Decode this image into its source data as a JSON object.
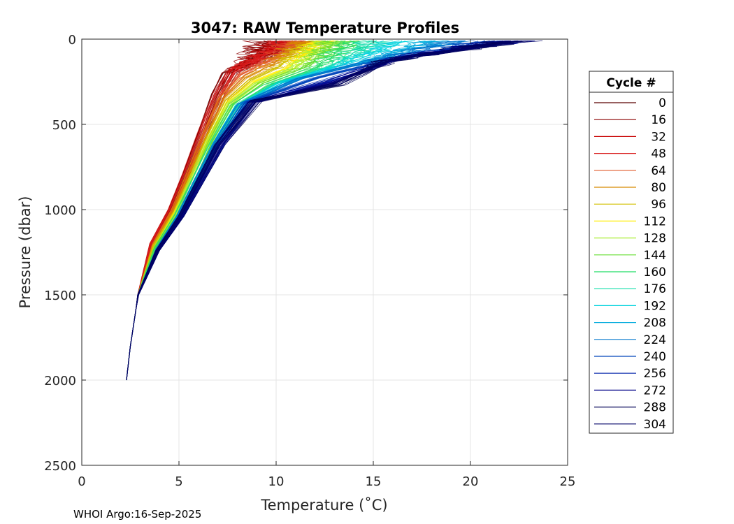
{
  "chart_data": {
    "type": "line",
    "title": "3047: RAW Temperature Profiles",
    "xlabel": "Temperature (˚C)",
    "ylabel": "Pressure (dbar)",
    "xlim": [
      0,
      25
    ],
    "ylim": [
      0,
      2500
    ],
    "y_reversed": true,
    "grid": true,
    "x_ticks": [
      0,
      5,
      10,
      15,
      20,
      25
    ],
    "y_ticks": [
      0,
      500,
      1000,
      1500,
      2000,
      2500
    ],
    "legend": {
      "title": "Cycle #",
      "placement": "outside-right",
      "entries": [
        {
          "label": "0",
          "color": "#5a0000"
        },
        {
          "label": "16",
          "color": "#8c0000"
        },
        {
          "label": "32",
          "color": "#c80000"
        },
        {
          "label": "48",
          "color": "#d92020"
        },
        {
          "label": "64",
          "color": "#e05a2a"
        },
        {
          "label": "80",
          "color": "#d88a00"
        },
        {
          "label": "96",
          "color": "#d2c000"
        },
        {
          "label": "112",
          "color": "#ffee00"
        },
        {
          "label": "128",
          "color": "#aaee33"
        },
        {
          "label": "144",
          "color": "#66dd33"
        },
        {
          "label": "160",
          "color": "#22dd66"
        },
        {
          "label": "176",
          "color": "#11ddaa"
        },
        {
          "label": "192",
          "color": "#00d2dd"
        },
        {
          "label": "208",
          "color": "#00aadd"
        },
        {
          "label": "224",
          "color": "#0077cc"
        },
        {
          "label": "240",
          "color": "#0044bb"
        },
        {
          "label": "256",
          "color": "#0022aa"
        },
        {
          "label": "272",
          "color": "#000088"
        },
        {
          "label": "288",
          "color": "#000055"
        },
        {
          "label": "304",
          "color": "#000066"
        }
      ]
    },
    "series": [
      {
        "name": "0",
        "color": "#5a0000",
        "points": [
          [
            11.2,
            10
          ],
          [
            8.6,
            150
          ],
          [
            7.6,
            200
          ],
          [
            7.0,
            320
          ],
          [
            6.2,
            560
          ],
          [
            5.4,
            790
          ],
          [
            4.6,
            1000
          ],
          [
            3.6,
            1200
          ],
          [
            2.9,
            1500
          ],
          [
            2.5,
            1800
          ],
          [
            2.3,
            2000
          ]
        ]
      },
      {
        "name": "16",
        "color": "#8c0000",
        "points": [
          [
            9.6,
            10
          ],
          [
            8.4,
            140
          ],
          [
            7.5,
            200
          ],
          [
            7.0,
            320
          ],
          [
            6.2,
            560
          ],
          [
            5.4,
            790
          ],
          [
            4.6,
            1000
          ],
          [
            3.6,
            1200
          ],
          [
            2.9,
            1500
          ],
          [
            2.5,
            1800
          ],
          [
            2.3,
            2000
          ]
        ]
      },
      {
        "name": "32",
        "color": "#c80000",
        "points": [
          [
            10.6,
            10
          ],
          [
            8.9,
            120
          ],
          [
            7.8,
            190
          ],
          [
            7.1,
            320
          ],
          [
            6.2,
            560
          ],
          [
            5.4,
            790
          ],
          [
            4.6,
            1000
          ],
          [
            3.6,
            1200
          ],
          [
            2.9,
            1500
          ],
          [
            2.5,
            1800
          ],
          [
            2.3,
            2000
          ]
        ]
      },
      {
        "name": "48",
        "color": "#d92020",
        "points": [
          [
            10.8,
            10
          ],
          [
            9.2,
            110
          ],
          [
            7.9,
            180
          ],
          [
            7.1,
            320
          ],
          [
            6.2,
            560
          ],
          [
            5.4,
            790
          ],
          [
            4.6,
            1000
          ],
          [
            3.6,
            1200
          ],
          [
            2.9,
            1500
          ],
          [
            2.5,
            1800
          ],
          [
            2.3,
            2000
          ]
        ]
      },
      {
        "name": "64",
        "color": "#e05a2a",
        "points": [
          [
            11.3,
            10
          ],
          [
            9.6,
            130
          ],
          [
            8.2,
            210
          ],
          [
            7.2,
            330
          ],
          [
            6.3,
            560
          ],
          [
            5.5,
            800
          ],
          [
            4.7,
            1000
          ],
          [
            3.7,
            1200
          ],
          [
            2.9,
            1500
          ],
          [
            2.5,
            1800
          ],
          [
            2.3,
            2000
          ]
        ]
      },
      {
        "name": "80",
        "color": "#d88a00",
        "points": [
          [
            11.6,
            10
          ],
          [
            9.8,
            150
          ],
          [
            8.4,
            230
          ],
          [
            7.3,
            350
          ],
          [
            6.4,
            570
          ],
          [
            5.5,
            800
          ],
          [
            4.7,
            1010
          ],
          [
            3.7,
            1210
          ],
          [
            2.9,
            1500
          ],
          [
            2.5,
            1800
          ],
          [
            2.3,
            2000
          ]
        ]
      },
      {
        "name": "96",
        "color": "#d2c000",
        "points": [
          [
            12.0,
            10
          ],
          [
            10.2,
            160
          ],
          [
            8.7,
            240
          ],
          [
            7.5,
            360
          ],
          [
            6.5,
            580
          ],
          [
            5.6,
            810
          ],
          [
            4.8,
            1010
          ],
          [
            3.7,
            1210
          ],
          [
            2.9,
            1500
          ],
          [
            2.5,
            1800
          ],
          [
            2.3,
            2000
          ]
        ]
      },
      {
        "name": "112",
        "color": "#ffee00",
        "points": [
          [
            12.3,
            10
          ],
          [
            10.6,
            170
          ],
          [
            8.9,
            250
          ],
          [
            7.6,
            370
          ],
          [
            6.6,
            590
          ],
          [
            5.7,
            820
          ],
          [
            4.8,
            1020
          ],
          [
            3.8,
            1220
          ],
          [
            2.9,
            1500
          ],
          [
            2.5,
            1800
          ],
          [
            2.3,
            2000
          ]
        ]
      },
      {
        "name": "128",
        "color": "#aaee33",
        "points": [
          [
            12.8,
            10
          ],
          [
            11.0,
            170
          ],
          [
            9.1,
            260
          ],
          [
            7.7,
            380
          ],
          [
            6.6,
            600
          ],
          [
            5.7,
            820
          ],
          [
            4.9,
            1020
          ],
          [
            3.8,
            1220
          ],
          [
            2.9,
            1500
          ],
          [
            2.5,
            1800
          ],
          [
            2.3,
            2000
          ]
        ]
      },
      {
        "name": "144",
        "color": "#66dd33",
        "points": [
          [
            13.3,
            10
          ],
          [
            11.4,
            170
          ],
          [
            9.3,
            260
          ],
          [
            7.8,
            380
          ],
          [
            6.7,
            600
          ],
          [
            5.8,
            830
          ],
          [
            4.9,
            1030
          ],
          [
            3.8,
            1220
          ],
          [
            2.9,
            1500
          ],
          [
            2.5,
            1800
          ],
          [
            2.3,
            2000
          ]
        ]
      },
      {
        "name": "160",
        "color": "#22dd66",
        "points": [
          [
            14.0,
            10
          ],
          [
            12.0,
            170
          ],
          [
            9.6,
            270
          ],
          [
            7.9,
            390
          ],
          [
            6.8,
            610
          ],
          [
            5.8,
            830
          ],
          [
            4.9,
            1030
          ],
          [
            3.8,
            1230
          ],
          [
            2.9,
            1500
          ],
          [
            2.5,
            1800
          ],
          [
            2.3,
            2000
          ]
        ]
      },
      {
        "name": "176",
        "color": "#11ddaa",
        "points": [
          [
            15.2,
            10
          ],
          [
            12.8,
            160
          ],
          [
            10.0,
            260
          ],
          [
            8.0,
            390
          ],
          [
            6.8,
            610
          ],
          [
            5.8,
            830
          ],
          [
            5.0,
            1030
          ],
          [
            3.9,
            1230
          ],
          [
            2.9,
            1500
          ],
          [
            2.5,
            1800
          ],
          [
            2.3,
            2000
          ]
        ]
      },
      {
        "name": "192",
        "color": "#00d2dd",
        "points": [
          [
            16.5,
            10
          ],
          [
            13.5,
            150
          ],
          [
            10.4,
            250
          ],
          [
            8.1,
            390
          ],
          [
            6.9,
            610
          ],
          [
            5.9,
            840
          ],
          [
            5.0,
            1040
          ],
          [
            3.9,
            1230
          ],
          [
            2.9,
            1500
          ],
          [
            2.5,
            1800
          ],
          [
            2.3,
            2000
          ]
        ]
      },
      {
        "name": "208",
        "color": "#00aadd",
        "points": [
          [
            18.0,
            10
          ],
          [
            14.2,
            140
          ],
          [
            10.8,
            240
          ],
          [
            8.2,
            380
          ],
          [
            6.9,
            610
          ],
          [
            5.9,
            840
          ],
          [
            5.0,
            1040
          ],
          [
            3.9,
            1230
          ],
          [
            2.9,
            1500
          ],
          [
            2.5,
            1800
          ],
          [
            2.3,
            2000
          ]
        ]
      },
      {
        "name": "224",
        "color": "#0077cc",
        "points": [
          [
            19.6,
            10
          ],
          [
            15.0,
            130
          ],
          [
            11.4,
            230
          ],
          [
            8.3,
            380
          ],
          [
            7.0,
            610
          ],
          [
            5.9,
            840
          ],
          [
            5.0,
            1040
          ],
          [
            3.9,
            1230
          ],
          [
            2.9,
            1500
          ],
          [
            2.5,
            1800
          ],
          [
            2.3,
            2000
          ]
        ]
      },
      {
        "name": "240",
        "color": "#0044bb",
        "points": [
          [
            21.0,
            10
          ],
          [
            15.8,
            120
          ],
          [
            12.0,
            230
          ],
          [
            8.5,
            370
          ],
          [
            7.0,
            610
          ],
          [
            6.0,
            840
          ],
          [
            5.1,
            1040
          ],
          [
            3.9,
            1230
          ],
          [
            2.9,
            1500
          ],
          [
            2.5,
            1800
          ],
          [
            2.3,
            2000
          ]
        ]
      },
      {
        "name": "256",
        "color": "#0022aa",
        "points": [
          [
            22.0,
            10
          ],
          [
            16.6,
            100
          ],
          [
            12.6,
            240
          ],
          [
            8.6,
            370
          ],
          [
            7.1,
            610
          ],
          [
            6.0,
            850
          ],
          [
            5.1,
            1040
          ],
          [
            3.9,
            1240
          ],
          [
            2.9,
            1500
          ],
          [
            2.5,
            1800
          ],
          [
            2.3,
            2000
          ]
        ]
      },
      {
        "name": "272",
        "color": "#000088",
        "points": [
          [
            22.2,
            10
          ],
          [
            16.2,
            110
          ],
          [
            12.8,
            250
          ],
          [
            8.8,
            370
          ],
          [
            7.1,
            620
          ],
          [
            6.0,
            850
          ],
          [
            5.1,
            1040
          ],
          [
            3.9,
            1240
          ],
          [
            2.9,
            1500
          ],
          [
            2.5,
            1800
          ],
          [
            2.3,
            2000
          ]
        ]
      },
      {
        "name": "288",
        "color": "#000055",
        "points": [
          [
            22.3,
            10
          ],
          [
            15.6,
            130
          ],
          [
            13.2,
            270
          ],
          [
            9.0,
            360
          ],
          [
            7.1,
            620
          ],
          [
            6.0,
            850
          ],
          [
            5.1,
            1040
          ],
          [
            3.9,
            1240
          ],
          [
            2.9,
            1500
          ],
          [
            2.5,
            1800
          ],
          [
            2.3,
            2000
          ]
        ]
      },
      {
        "name": "304",
        "color": "#000066",
        "points": [
          [
            22.3,
            10
          ],
          [
            16.0,
            120
          ],
          [
            13.0,
            260
          ],
          [
            8.8,
            370
          ],
          [
            7.1,
            620
          ],
          [
            6.0,
            850
          ],
          [
            5.1,
            1040
          ],
          [
            3.9,
            1240
          ],
          [
            2.9,
            1500
          ],
          [
            2.5,
            1800
          ],
          [
            2.3,
            2000
          ]
        ]
      }
    ]
  },
  "footer": {
    "text": "WHOI Argo:16-Sep-2025"
  }
}
